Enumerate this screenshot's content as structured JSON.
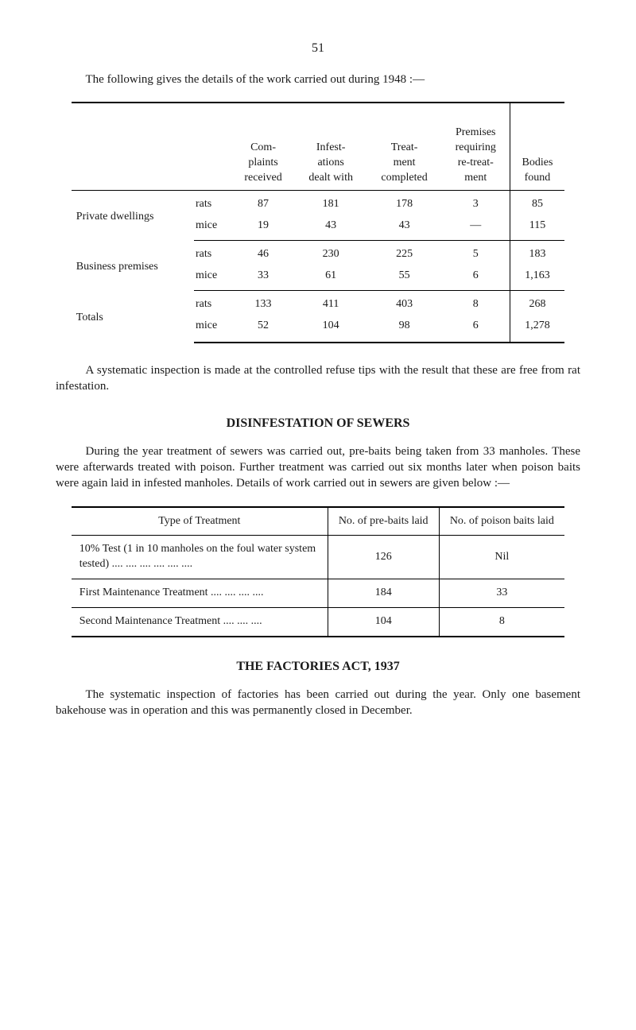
{
  "page_number": "51",
  "intro_para": "The following gives the details of the work carried out during 1948 :—",
  "table1": {
    "type": "table",
    "columns": [
      "",
      "",
      "Com-\nplaints\nreceived",
      "Infest-\nations\ndealt with",
      "Treat-\nment\ncompleted",
      "Premises\nrequiring\nre-treat-\nment",
      "Bodies\nfound"
    ],
    "groups": [
      {
        "label": "Private dwellings",
        "rows": [
          {
            "sub": "rats",
            "cells": [
              "87",
              "181",
              "178",
              "3",
              "85"
            ]
          },
          {
            "sub": "mice",
            "cells": [
              "19",
              "43",
              "43",
              "—",
              "115"
            ]
          }
        ]
      },
      {
        "label": "Business premises",
        "rows": [
          {
            "sub": "rats",
            "cells": [
              "46",
              "230",
              "225",
              "5",
              "183"
            ]
          },
          {
            "sub": "mice",
            "cells": [
              "33",
              "61",
              "55",
              "6",
              "1,163"
            ]
          }
        ]
      },
      {
        "label": "Totals",
        "rows": [
          {
            "sub": "rats",
            "cells": [
              "133",
              "411",
              "403",
              "8",
              "268"
            ]
          },
          {
            "sub": "mice",
            "cells": [
              "52",
              "104",
              "98",
              "6",
              "1,278"
            ]
          }
        ]
      }
    ]
  },
  "mid_para": "A systematic inspection is made at the controlled refuse tips with the result that these are free from rat infestation.",
  "heading1": "DISINFESTATION OF SEWERS",
  "sewers_para": "During the year treatment of sewers was carried out, pre-baits being taken from 33 manholes. These were afterwards treated with poison. Further treatment was carried out six months later when poison baits were again laid in infested manholes. Details of work carried out in sewers are given below :—",
  "table2": {
    "type": "table",
    "columns": [
      "Type of Treatment",
      "No. of pre-baits laid",
      "No. of poison baits laid"
    ],
    "rows": [
      [
        "10% Test (1 in 10 manholes on the foul water system tested)   ....  ....  ....  ....  ....  ....",
        "126",
        "Nil"
      ],
      [
        "First Maintenance Treatment  ....  ....  ....  ....",
        "184",
        "33"
      ],
      [
        "Second Maintenance Treatment     ....  ....  ....",
        "104",
        "8"
      ]
    ]
  },
  "heading2": "THE FACTORIES ACT, 1937",
  "factories_para": "The systematic inspection of factories has been carried out during the year. Only one basement bakehouse was in operation and this was permanently closed in December."
}
